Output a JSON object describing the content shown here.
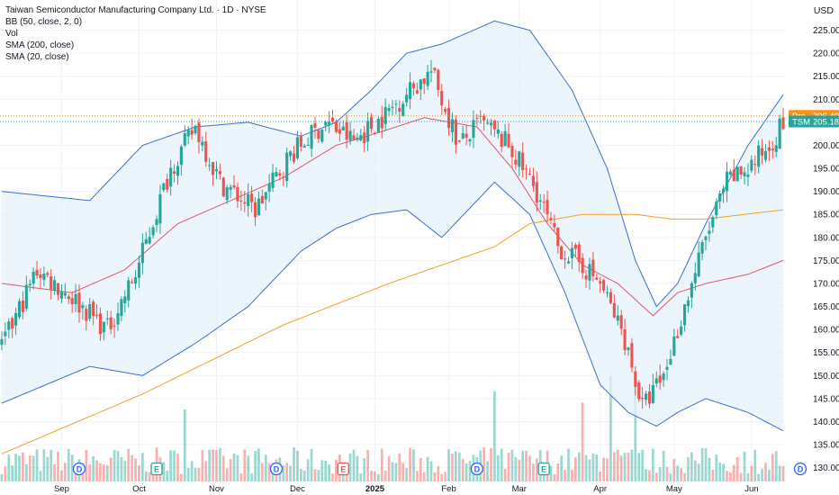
{
  "header": {
    "title": "Taiwan Semiconductor Manufacturing Company Ltd. · 1D · NYSE",
    "indicators": [
      "BB (50, close, 2, 0)",
      "Vol",
      "SMA (200, close)",
      "SMA (20, close)"
    ],
    "currency": "USD"
  },
  "price_labels": {
    "pre": {
      "tag": "Pre",
      "value": "206.40",
      "color": "#f7931a"
    },
    "last": {
      "tag": "TSM",
      "value": "205.18",
      "color": "#26a69a"
    }
  },
  "colors": {
    "up": "#26a69a",
    "down": "#ef5350",
    "bb": "#3d6fd1",
    "bb_fill": "#e6f0fb",
    "sma200": "#f3a024",
    "sma20": "#e0576a"
  },
  "event_markers": [
    {
      "date": "Sep 6",
      "letter": "D"
    },
    {
      "date": "Oct 17",
      "letter": "E"
    },
    {
      "date": "Dec 12",
      "letter": "D"
    },
    {
      "date": "Jan 16",
      "letter": "E"
    },
    {
      "date": "Mar 13",
      "letter": "D"
    },
    {
      "date": "Apr 17",
      "letter": "E"
    },
    {
      "date": "Jun 12",
      "letter": "D"
    }
  ],
  "chart_data": {
    "type": "candlestick",
    "ylim": [
      127,
      230
    ],
    "y_ticks": [
      130,
      135,
      140,
      145,
      150,
      155,
      160,
      165,
      170,
      175,
      180,
      185,
      190,
      195,
      200,
      205,
      210,
      215,
      220,
      225
    ],
    "x_ticks": [
      "Sep",
      "Oct",
      "Nov",
      "Dec",
      "2025",
      "Feb",
      "Mar",
      "Apr",
      "May",
      "Jun"
    ],
    "grid": true,
    "series_keypoints": {
      "close": [
        [
          0,
          156
        ],
        [
          10,
          173
        ],
        [
          20,
          167
        ],
        [
          30,
          160
        ],
        [
          38,
          172
        ],
        [
          48,
          195
        ],
        [
          55,
          204
        ],
        [
          62,
          192
        ],
        [
          72,
          186
        ],
        [
          82,
          198
        ],
        [
          92,
          205
        ],
        [
          100,
          201
        ],
        [
          108,
          206
        ],
        [
          116,
          212
        ],
        [
          122,
          216
        ],
        [
          130,
          200
        ],
        [
          136,
          205
        ],
        [
          144,
          200
        ],
        [
          152,
          190
        ],
        [
          158,
          178
        ],
        [
          165,
          174
        ],
        [
          170,
          170
        ],
        [
          177,
          158
        ],
        [
          182,
          143
        ],
        [
          188,
          150
        ],
        [
          194,
          165
        ],
        [
          200,
          180
        ],
        [
          206,
          192
        ],
        [
          212,
          195
        ],
        [
          218,
          200
        ],
        [
          222,
          205
        ]
      ],
      "sma20": [
        [
          0,
          170
        ],
        [
          20,
          168
        ],
        [
          35,
          173
        ],
        [
          50,
          183
        ],
        [
          65,
          188
        ],
        [
          80,
          193
        ],
        [
          95,
          200
        ],
        [
          108,
          203
        ],
        [
          120,
          206
        ],
        [
          135,
          204
        ],
        [
          145,
          195
        ],
        [
          155,
          183
        ],
        [
          165,
          174
        ],
        [
          175,
          170
        ],
        [
          185,
          163
        ],
        [
          192,
          168
        ],
        [
          200,
          170
        ],
        [
          212,
          172
        ],
        [
          222,
          175
        ]
      ],
      "sma200": [
        [
          0,
          133
        ],
        [
          40,
          146
        ],
        [
          80,
          161
        ],
        [
          110,
          170
        ],
        [
          140,
          178
        ],
        [
          150,
          183
        ],
        [
          165,
          185
        ],
        [
          180,
          185
        ],
        [
          190,
          184
        ],
        [
          200,
          184
        ],
        [
          222,
          186
        ]
      ],
      "bb_upper": [
        [
          0,
          190
        ],
        [
          25,
          188
        ],
        [
          40,
          200
        ],
        [
          55,
          204
        ],
        [
          70,
          205
        ],
        [
          85,
          202
        ],
        [
          95,
          205
        ],
        [
          105,
          212
        ],
        [
          115,
          220
        ],
        [
          125,
          222
        ],
        [
          140,
          227
        ],
        [
          150,
          225
        ],
        [
          162,
          212
        ],
        [
          172,
          195
        ],
        [
          180,
          175
        ],
        [
          186,
          165
        ],
        [
          192,
          170
        ],
        [
          200,
          183
        ],
        [
          212,
          200
        ],
        [
          222,
          211
        ]
      ],
      "bb_lower": [
        [
          0,
          144
        ],
        [
          25,
          152
        ],
        [
          40,
          150
        ],
        [
          55,
          157
        ],
        [
          70,
          165
        ],
        [
          85,
          177
        ],
        [
          95,
          182
        ],
        [
          105,
          185
        ],
        [
          115,
          186
        ],
        [
          125,
          180
        ],
        [
          140,
          192
        ],
        [
          150,
          185
        ],
        [
          160,
          168
        ],
        [
          170,
          148
        ],
        [
          178,
          142
        ],
        [
          186,
          139
        ],
        [
          192,
          142
        ],
        [
          200,
          145
        ],
        [
          212,
          142
        ],
        [
          222,
          138
        ]
      ]
    },
    "volume": {
      "max_scale": 60,
      "n_bars": 223
    },
    "last_price": 205.18,
    "pre_price": 206.4
  }
}
